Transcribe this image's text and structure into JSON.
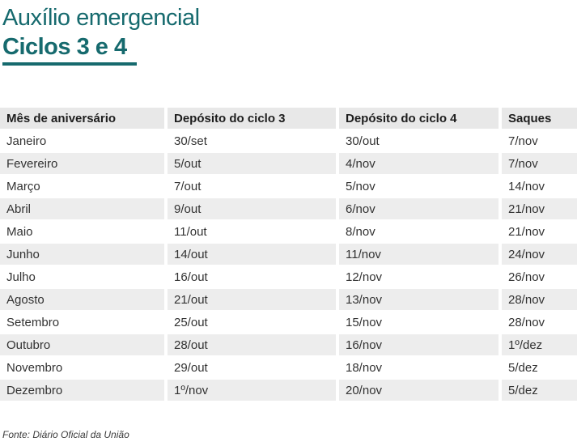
{
  "theme": {
    "accent": "#166a6e",
    "row_alt_bg": "#ededed",
    "header_bg": "#e8e8e8"
  },
  "chart_data": {
    "type": "table",
    "title": "Auxílio emergencial",
    "subtitle": "Ciclos 3 e 4",
    "columns": [
      "Mês de aniversário",
      "Depósito do ciclo 3",
      "Depósito do ciclo 4",
      "Saques"
    ],
    "rows": [
      [
        "Janeiro",
        "30/set",
        "30/out",
        "7/nov"
      ],
      [
        "Fevereiro",
        "5/out",
        "4/nov",
        "7/nov"
      ],
      [
        "Março",
        "7/out",
        "5/nov",
        "14/nov"
      ],
      [
        "Abril",
        "9/out",
        "6/nov",
        "21/nov"
      ],
      [
        "Maio",
        "11/out",
        "8/nov",
        "21/nov"
      ],
      [
        "Junho",
        "14/out",
        "11/nov",
        "24/nov"
      ],
      [
        "Julho",
        "16/out",
        "12/nov",
        "26/nov"
      ],
      [
        "Agosto",
        "21/out",
        "13/nov",
        "28/nov"
      ],
      [
        "Setembro",
        "25/out",
        "15/nov",
        "28/nov"
      ],
      [
        "Outubro",
        "28/out",
        "16/nov",
        "1º/dez"
      ],
      [
        "Novembro",
        "29/out",
        "18/nov",
        "5/dez"
      ],
      [
        "Dezembro",
        "1º/nov",
        "20/nov",
        "5/dez"
      ]
    ],
    "source": "Fonte: Diário Oficial da União",
    "layout": {
      "striped": true,
      "header_position": "top",
      "legend": "none",
      "grid": "off"
    }
  }
}
